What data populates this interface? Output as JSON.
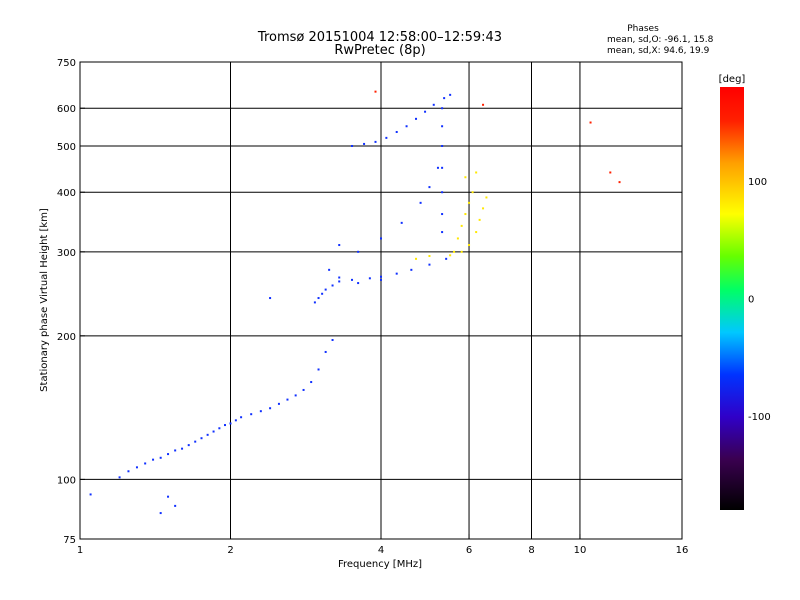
{
  "header": {
    "title_line1": "Tromsø 20151004 12:58:00–12:59:43",
    "title_line2": "RwPretec (8p)"
  },
  "stats": {
    "heading": "Phases",
    "line1": "mean, sd,O: -96.1, 15.8",
    "line2": "mean, sd,X:  94.6, 19.9"
  },
  "colorbar": {
    "label": "[deg]",
    "ticks": [
      {
        "value": 100,
        "label": "100"
      },
      {
        "value": 0,
        "label": "0"
      },
      {
        "value": -100,
        "label": "-100"
      }
    ],
    "range": [
      -180,
      180
    ],
    "colors": [
      "#000000",
      "#3a0050",
      "#3000c8",
      "#0033ff",
      "#00c8ff",
      "#00ff66",
      "#66ff00",
      "#ffff00",
      "#ffa000",
      "#ff2000",
      "#ff0000"
    ]
  },
  "chart_data": {
    "type": "scatter",
    "xlabel": "Frequency [MHz]",
    "ylabel": "Stationary phase Virtual Height [km]",
    "xscale": "log",
    "yscale": "log",
    "xlim": [
      1,
      16
    ],
    "ylim": [
      75,
      750
    ],
    "xticks": [
      1,
      2,
      4,
      6,
      8,
      10,
      16
    ],
    "yticks": [
      75,
      100,
      200,
      300,
      400,
      500,
      600,
      750
    ],
    "grid_x": [
      2,
      4,
      6,
      8,
      10
    ],
    "grid_y": [
      100,
      200,
      300,
      400,
      500,
      600
    ],
    "color_encodes": "phase (deg)",
    "series": [
      {
        "color": "#1030ff",
        "points": [
          [
            1.05,
            93
          ],
          [
            1.2,
            101
          ],
          [
            1.25,
            104
          ],
          [
            1.3,
            106
          ],
          [
            1.35,
            108
          ],
          [
            1.4,
            110
          ],
          [
            1.45,
            111
          ],
          [
            1.5,
            113
          ],
          [
            1.55,
            115
          ],
          [
            1.6,
            116
          ],
          [
            1.65,
            118
          ],
          [
            1.7,
            120
          ],
          [
            1.75,
            122
          ],
          [
            1.8,
            124
          ],
          [
            1.85,
            126
          ],
          [
            1.9,
            128
          ],
          [
            1.95,
            130
          ],
          [
            2.0,
            131
          ],
          [
            2.05,
            133
          ],
          [
            2.1,
            135
          ],
          [
            2.2,
            137
          ],
          [
            2.3,
            139
          ],
          [
            2.4,
            141
          ],
          [
            2.5,
            144
          ],
          [
            2.6,
            147
          ],
          [
            2.7,
            150
          ],
          [
            2.8,
            154
          ],
          [
            2.9,
            160
          ],
          [
            3.0,
            170
          ],
          [
            3.1,
            185
          ],
          [
            3.2,
            196
          ],
          [
            2.95,
            235
          ],
          [
            3.0,
            240
          ],
          [
            3.05,
            245
          ],
          [
            3.1,
            250
          ],
          [
            3.2,
            255
          ],
          [
            3.3,
            260
          ],
          [
            3.5,
            262
          ],
          [
            3.8,
            264
          ],
          [
            4.0,
            266
          ],
          [
            4.3,
            270
          ],
          [
            4.6,
            275
          ],
          [
            5.0,
            282
          ],
          [
            5.4,
            290
          ],
          [
            5.3,
            330
          ],
          [
            5.3,
            360
          ],
          [
            5.3,
            400
          ],
          [
            5.3,
            450
          ],
          [
            5.3,
            500
          ],
          [
            5.3,
            550
          ],
          [
            5.3,
            600
          ],
          [
            5.35,
            630
          ],
          [
            5.5,
            640
          ],
          [
            3.5,
            500
          ],
          [
            3.7,
            505
          ],
          [
            3.9,
            510
          ],
          [
            4.1,
            520
          ],
          [
            4.3,
            535
          ],
          [
            4.5,
            550
          ],
          [
            4.7,
            570
          ],
          [
            4.9,
            590
          ],
          [
            5.1,
            610
          ],
          [
            3.3,
            310
          ],
          [
            3.6,
            300
          ],
          [
            4.0,
            320
          ],
          [
            4.4,
            345
          ],
          [
            4.8,
            380
          ],
          [
            5.0,
            410
          ],
          [
            5.2,
            450
          ],
          [
            3.15,
            275
          ],
          [
            3.3,
            265
          ],
          [
            3.6,
            258
          ],
          [
            4.0,
            262
          ],
          [
            2.4,
            240
          ],
          [
            1.5,
            92
          ],
          [
            1.55,
            88
          ],
          [
            1.45,
            85
          ]
        ]
      },
      {
        "color": "#ffe800",
        "points": [
          [
            5.6,
            300
          ],
          [
            5.7,
            320
          ],
          [
            5.8,
            340
          ],
          [
            5.9,
            360
          ],
          [
            6.0,
            380
          ],
          [
            6.1,
            400
          ],
          [
            6.2,
            330
          ],
          [
            6.3,
            350
          ],
          [
            5.5,
            295
          ],
          [
            5.9,
            430
          ],
          [
            6.2,
            440
          ],
          [
            6.5,
            390
          ],
          [
            4.7,
            290
          ],
          [
            5.0,
            294
          ],
          [
            6.0,
            310
          ],
          [
            5.8,
            300
          ],
          [
            6.4,
            370
          ]
        ]
      },
      {
        "color": "#ff2000",
        "points": [
          [
            3.9,
            650
          ],
          [
            6.4,
            610
          ],
          [
            10.5,
            560
          ],
          [
            11.5,
            440
          ],
          [
            12.0,
            420
          ]
        ]
      }
    ]
  }
}
